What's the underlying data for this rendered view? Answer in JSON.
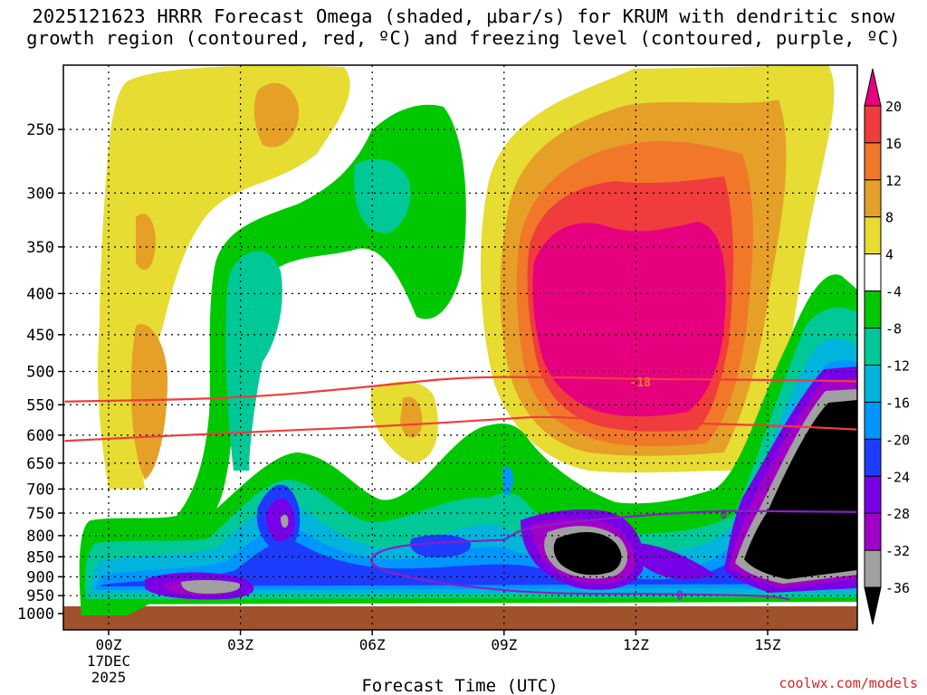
{
  "chart_data": {
    "type": "heatmap",
    "title_line1": "2025121623 HRRR Forecast Omega (shaded, μbar/s) for KRUM with dendritic snow",
    "title_line2": "growth region (contoured, red, ºC) and freezing level (contoured, purple, ºC)",
    "xlabel": "Forecast Time (UTC)",
    "ylabel": "",
    "x_ticks": [
      "00Z",
      "03Z",
      "06Z",
      "09Z",
      "12Z",
      "15Z"
    ],
    "x_tick_sub": [
      "17DEC",
      "2025"
    ],
    "y_ticks": [
      250,
      300,
      350,
      400,
      450,
      500,
      550,
      600,
      650,
      700,
      750,
      800,
      850,
      900,
      950,
      1000
    ],
    "xlim": [
      -0.6,
      17.4
    ],
    "ylim": [
      1030,
      200
    ],
    "grid": true,
    "colorbar": {
      "labels": [
        "20",
        "16",
        "12",
        "8",
        "4",
        "-4",
        "-8",
        "-12",
        "-16",
        "-20",
        "-24",
        "-28",
        "-32",
        "-36"
      ],
      "colors": [
        "#e6007e",
        "#f03c3c",
        "#f07828",
        "#e6a028",
        "#e6dc32",
        "#ffffff",
        "#00c800",
        "#00c896",
        "#00b4dc",
        "#0096ff",
        "#1e3cff",
        "#7800e6",
        "#a000c8",
        "#a0a0a0",
        "#000000"
      ]
    },
    "contours": [
      {
        "label": "-18",
        "color": "#f03c3c",
        "points": [
          [
            -1,
            545
          ],
          [
            3,
            540
          ],
          [
            6,
            522
          ],
          [
            8,
            508
          ],
          [
            10,
            508
          ],
          [
            12,
            511
          ],
          [
            15,
            512
          ],
          [
            17.5,
            515
          ]
        ]
      },
      {
        "label": "-12",
        "color": "#f03c3c",
        "points": [
          [
            -1,
            610
          ],
          [
            3,
            595
          ],
          [
            6,
            586
          ],
          [
            9,
            573
          ],
          [
            10,
            568
          ],
          [
            12,
            578
          ],
          [
            15,
            583
          ],
          [
            17.5,
            592
          ]
        ]
      },
      {
        "label": "0",
        "color": "#8a1fc8",
        "points": [
          [
            9,
            810
          ],
          [
            9.5,
            780
          ],
          [
            12,
            755
          ],
          [
            14,
            745
          ],
          [
            15,
            746
          ],
          [
            17.5,
            748
          ]
        ]
      },
      {
        "label": "0",
        "color": "#8a1fc8",
        "points": [
          [
            9,
            810
          ],
          [
            6.5,
            820
          ],
          [
            5.8,
            860
          ],
          [
            6.5,
            895
          ],
          [
            8,
            925
          ],
          [
            10,
            945
          ],
          [
            12.5,
            945
          ],
          [
            15,
            950
          ],
          [
            15.5,
            960
          ]
        ]
      }
    ],
    "contour_labels": [
      {
        "text": "-18",
        "x": 12.1,
        "y": 515
      },
      {
        "text": "0",
        "x": 14.0,
        "y": 752
      },
      {
        "text": "0",
        "x": 13.0,
        "y": 948
      }
    ]
  },
  "credit": "coolwx.com/models"
}
